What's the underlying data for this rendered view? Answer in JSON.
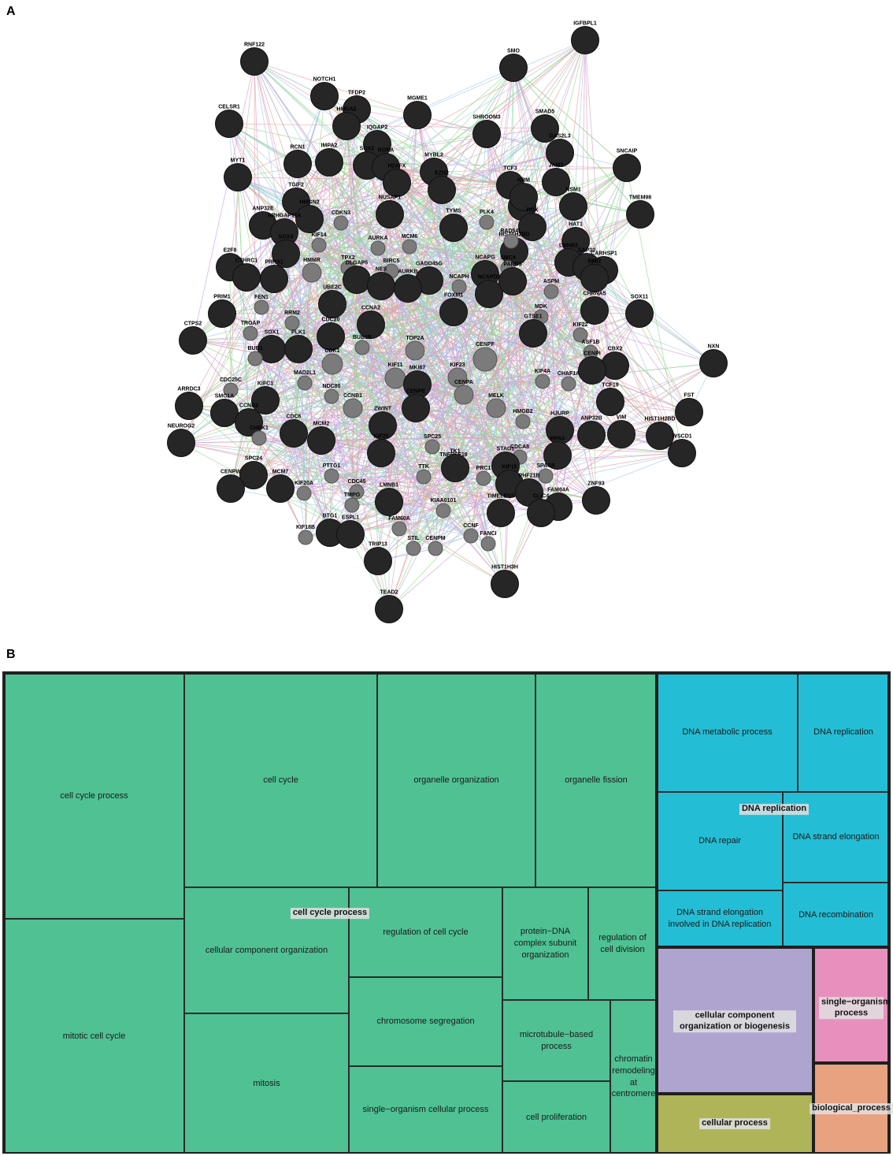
{
  "panels": {
    "a": "A",
    "b": "B"
  },
  "colors": {
    "hub": "#262626",
    "minor": "#7b7b7b",
    "edge_pink": "#e8a0a0",
    "edge_green": "#8fdc8f",
    "edge_purple": "#cfa0dc",
    "edge_blue": "#a6c8ea",
    "green": "#4fc193",
    "cyan": "#23bed5",
    "lavender": "#afa4d0",
    "pink": "#e890bd",
    "olive": "#aeb457",
    "salmon": "#e8a27f"
  },
  "network": {
    "nodes": [
      {
        "id": "IGFBPL1",
        "kind": "hub"
      },
      {
        "id": "RNF122",
        "kind": "hub"
      },
      {
        "id": "SMO",
        "kind": "hub"
      },
      {
        "id": "NOTCH1",
        "kind": "hub"
      },
      {
        "id": "TFDP2",
        "kind": "hub"
      },
      {
        "id": "MGME1",
        "kind": "hub"
      },
      {
        "id": "CELSR1",
        "kind": "hub"
      },
      {
        "id": "HMGA2",
        "kind": "hub"
      },
      {
        "id": "SHROOM3",
        "kind": "hub"
      },
      {
        "id": "SMAD5",
        "kind": "hub"
      },
      {
        "id": "IQGAP2",
        "kind": "hub"
      },
      {
        "id": "GAS2L3",
        "kind": "hub"
      },
      {
        "id": "RCN1",
        "kind": "hub"
      },
      {
        "id": "IMPA2",
        "kind": "hub"
      },
      {
        "id": "SOX2",
        "kind": "hub"
      },
      {
        "id": "RORA",
        "kind": "hub"
      },
      {
        "id": "MYT1",
        "kind": "hub"
      },
      {
        "id": "H2AFX",
        "kind": "hub"
      },
      {
        "id": "MYBL2",
        "kind": "hub"
      },
      {
        "id": "SNCAIP",
        "kind": "hub"
      },
      {
        "id": "TCF3",
        "kind": "hub"
      },
      {
        "id": "JAM3",
        "kind": "hub"
      },
      {
        "id": "TGIF2",
        "kind": "hub"
      },
      {
        "id": "EZH2",
        "kind": "hub"
      },
      {
        "id": "E2F2",
        "kind": "hub"
      },
      {
        "id": "TMEM98",
        "kind": "hub"
      },
      {
        "id": "NRM",
        "kind": "hub"
      },
      {
        "id": "NSM1",
        "kind": "hub"
      },
      {
        "id": "HMGN2",
        "kind": "hub"
      },
      {
        "id": "NUSAP1",
        "kind": "hub"
      },
      {
        "id": "ANP32E",
        "kind": "hub"
      },
      {
        "id": "CDKN3",
        "kind": "minor"
      },
      {
        "id": "TYMS",
        "kind": "hub"
      },
      {
        "id": "PLK4",
        "kind": "minor"
      },
      {
        "id": "RDX",
        "kind": "hub"
      },
      {
        "id": "ARHGAP11A",
        "kind": "hub"
      },
      {
        "id": "HAT1",
        "kind": "hub"
      },
      {
        "id": "KIF14",
        "kind": "minor"
      },
      {
        "id": "AURKA",
        "kind": "minor"
      },
      {
        "id": "MCM6",
        "kind": "minor"
      },
      {
        "id": "HIST1H2BD",
        "kind": "hub"
      },
      {
        "id": "RAD54L",
        "kind": "minor"
      },
      {
        "id": "SOX3",
        "kind": "hub"
      },
      {
        "id": "E2F8",
        "kind": "hub"
      },
      {
        "id": "LMNB2",
        "kind": "hub"
      },
      {
        "id": "SAP30",
        "kind": "hub"
      },
      {
        "id": "CARHSP1",
        "kind": "hub"
      },
      {
        "id": "CTHRC1",
        "kind": "hub"
      },
      {
        "id": "PRRX1",
        "kind": "hub"
      },
      {
        "id": "HMMR",
        "kind": "minor"
      },
      {
        "id": "TPX2",
        "kind": "minor"
      },
      {
        "id": "DLGAP5",
        "kind": "hub"
      },
      {
        "id": "GADD45G",
        "kind": "hub"
      },
      {
        "id": "NCAPG",
        "kind": "hub"
      },
      {
        "id": "SMC4",
        "kind": "minor"
      },
      {
        "id": "RMI2",
        "kind": "hub"
      },
      {
        "id": "BIRC5",
        "kind": "minor"
      },
      {
        "id": "NCAPH",
        "kind": "minor"
      },
      {
        "id": "NCAPD2",
        "kind": "hub"
      },
      {
        "id": "PARD3",
        "kind": "hub"
      },
      {
        "id": "ASPM",
        "kind": "minor"
      },
      {
        "id": "NES",
        "kind": "hub"
      },
      {
        "id": "UBE2C",
        "kind": "hub"
      },
      {
        "id": "FOXM1",
        "kind": "hub"
      },
      {
        "id": "AURKB",
        "kind": "hub"
      },
      {
        "id": "CHRNA5",
        "kind": "hub"
      },
      {
        "id": "PRIM1",
        "kind": "hub"
      },
      {
        "id": "FEN1",
        "kind": "minor"
      },
      {
        "id": "MDK",
        "kind": "minor"
      },
      {
        "id": "SOX11",
        "kind": "hub"
      },
      {
        "id": "RRM2",
        "kind": "minor"
      },
      {
        "id": "TROAP",
        "kind": "minor"
      },
      {
        "id": "CDC20",
        "kind": "hub"
      },
      {
        "id": "CCNA2",
        "kind": "hub"
      },
      {
        "id": "GTSE1",
        "kind": "hub"
      },
      {
        "id": "KIF22",
        "kind": "minor"
      },
      {
        "id": "CTPS2",
        "kind": "hub"
      },
      {
        "id": "SOX1",
        "kind": "hub"
      },
      {
        "id": "PLK1",
        "kind": "hub"
      },
      {
        "id": "BUB1B",
        "kind": "minor"
      },
      {
        "id": "TOP2A",
        "kind": "minor"
      },
      {
        "id": "CENPF",
        "kind": "minor"
      },
      {
        "id": "ASF1B",
        "kind": "minor"
      },
      {
        "id": "CBX2",
        "kind": "hub"
      },
      {
        "id": "NXN",
        "kind": "hub"
      },
      {
        "id": "BUB1",
        "kind": "minor"
      },
      {
        "id": "CDK1",
        "kind": "minor"
      },
      {
        "id": "CENPI",
        "kind": "hub"
      },
      {
        "id": "KIF11",
        "kind": "minor"
      },
      {
        "id": "KIF23",
        "kind": "minor"
      },
      {
        "id": "MAD2L1",
        "kind": "minor"
      },
      {
        "id": "KIF4A",
        "kind": "minor"
      },
      {
        "id": "CHAF1A",
        "kind": "minor"
      },
      {
        "id": "CDC25C",
        "kind": "minor"
      },
      {
        "id": "MKI67",
        "kind": "hub"
      },
      {
        "id": "TCF19",
        "kind": "hub"
      },
      {
        "id": "NDC80",
        "kind": "minor"
      },
      {
        "id": "CENPA",
        "kind": "minor"
      },
      {
        "id": "ARRDC3",
        "kind": "hub"
      },
      {
        "id": "KIFC1",
        "kind": "hub"
      },
      {
        "id": "CCNB1",
        "kind": "minor"
      },
      {
        "id": "CENPE",
        "kind": "hub"
      },
      {
        "id": "MELK",
        "kind": "minor"
      },
      {
        "id": "FST",
        "kind": "hub"
      },
      {
        "id": "SMC1A",
        "kind": "hub"
      },
      {
        "id": "HMGB2",
        "kind": "minor"
      },
      {
        "id": "HJURP",
        "kind": "hub"
      },
      {
        "id": "CCNB2",
        "kind": "hub"
      },
      {
        "id": "ZWINT",
        "kind": "hub"
      },
      {
        "id": "ANP32B",
        "kind": "hub"
      },
      {
        "id": "VIM",
        "kind": "hub"
      },
      {
        "id": "HIST1H2BD2",
        "kind": "hub"
      },
      {
        "id": "CHEK1",
        "kind": "minor"
      },
      {
        "id": "CDC6",
        "kind": "hub"
      },
      {
        "id": "MCM2",
        "kind": "hub"
      },
      {
        "id": "KIF20",
        "kind": "hub"
      },
      {
        "id": "SPC25",
        "kind": "minor"
      },
      {
        "id": "CDCA8",
        "kind": "minor"
      },
      {
        "id": "RPA3",
        "kind": "hub"
      },
      {
        "id": "NEUROG2",
        "kind": "hub"
      },
      {
        "id": "WSCD1",
        "kind": "hub"
      },
      {
        "id": "TNFRSF19",
        "kind": "minor"
      },
      {
        "id": "STAG1",
        "kind": "hub"
      },
      {
        "id": "SPC24",
        "kind": "hub"
      },
      {
        "id": "MCM7",
        "kind": "hub"
      },
      {
        "id": "PTTG1",
        "kind": "minor"
      },
      {
        "id": "KIF20A",
        "kind": "minor"
      },
      {
        "id": "TTK",
        "kind": "minor"
      },
      {
        "id": "TK1",
        "kind": "hub"
      },
      {
        "id": "PRC1",
        "kind": "minor"
      },
      {
        "id": "KIF15",
        "kind": "hub"
      },
      {
        "id": "SPAG5",
        "kind": "minor"
      },
      {
        "id": "PHF21B",
        "kind": "hub"
      },
      {
        "id": "CENPW",
        "kind": "hub"
      },
      {
        "id": "CDC45",
        "kind": "minor"
      },
      {
        "id": "ZNF93",
        "kind": "hub"
      },
      {
        "id": "TMPO",
        "kind": "minor"
      },
      {
        "id": "LMNB1",
        "kind": "hub"
      },
      {
        "id": "FAM64A",
        "kind": "hub"
      },
      {
        "id": "KIAA0101",
        "kind": "minor"
      },
      {
        "id": "TIMELESS",
        "kind": "hub"
      },
      {
        "id": "CLIC4",
        "kind": "hub"
      },
      {
        "id": "FAM60A",
        "kind": "minor"
      },
      {
        "id": "BTG1",
        "kind": "hub"
      },
      {
        "id": "ESPL1",
        "kind": "hub"
      },
      {
        "id": "KIF18B",
        "kind": "minor"
      },
      {
        "id": "CCNF",
        "kind": "minor"
      },
      {
        "id": "FANCI",
        "kind": "minor"
      },
      {
        "id": "STIL",
        "kind": "minor"
      },
      {
        "id": "CENPM",
        "kind": "minor"
      },
      {
        "id": "TRIP13",
        "kind": "hub"
      },
      {
        "id": "HIST1H3H",
        "kind": "hub"
      },
      {
        "id": "TEAD2",
        "kind": "hub"
      }
    ]
  },
  "treemap": {
    "tiles": [
      {
        "label": "cell cycle process",
        "color": "green"
      },
      {
        "label": "mitotic cell cycle",
        "color": "green"
      },
      {
        "label": "cell cycle",
        "color": "green"
      },
      {
        "label": "organelle organization",
        "color": "green"
      },
      {
        "label": "organelle fission",
        "color": "green"
      },
      {
        "label": "cellular component organization",
        "color": "green"
      },
      {
        "label": "regulation of cell cycle",
        "color": "green"
      },
      {
        "label": "protein−DNA complex subunit organization",
        "color": "green"
      },
      {
        "label": "regulation of cell division",
        "color": "green"
      },
      {
        "label": "mitosis",
        "color": "green"
      },
      {
        "label": "chromosome segregation",
        "color": "green"
      },
      {
        "label": "single−organism cellular process",
        "color": "green"
      },
      {
        "label": "microtubule−based process",
        "color": "green"
      },
      {
        "label": "cell proliferation",
        "color": "green"
      },
      {
        "label": "chromatin remodeling at centromere",
        "color": "green"
      },
      {
        "label": "DNA metabolic process",
        "color": "cyan"
      },
      {
        "label": "DNA replication",
        "color": "cyan"
      },
      {
        "label": "DNA repair",
        "color": "cyan"
      },
      {
        "label": "DNA strand elongation",
        "color": "cyan"
      },
      {
        "label": "DNA strand elongation involved in DNA replication",
        "color": "cyan"
      },
      {
        "label": "DNA recombination",
        "color": "cyan"
      },
      {
        "label": "",
        "color": "lavender"
      },
      {
        "label": "",
        "color": "pink"
      },
      {
        "label": "",
        "color": "olive"
      },
      {
        "label": "",
        "color": "salmon"
      }
    ],
    "groups": [
      {
        "label": "cell cycle process"
      },
      {
        "label": "DNA replication"
      },
      {
        "label": "cellular component organization or biogenesis"
      },
      {
        "label": "single−organism process"
      },
      {
        "label": "cellular process"
      },
      {
        "label": "biological_process"
      }
    ]
  }
}
